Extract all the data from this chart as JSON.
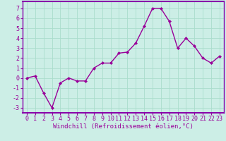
{
  "x": [
    0,
    1,
    2,
    3,
    4,
    5,
    6,
    7,
    8,
    9,
    10,
    11,
    12,
    13,
    14,
    15,
    16,
    17,
    18,
    19,
    20,
    21,
    22,
    23
  ],
  "y": [
    0,
    0.2,
    -1.5,
    -3.0,
    -0.5,
    0.0,
    -0.3,
    -0.3,
    1.0,
    1.5,
    1.5,
    2.5,
    2.6,
    3.5,
    5.2,
    7.0,
    7.0,
    5.7,
    3.0,
    4.0,
    3.2,
    2.0,
    1.5,
    2.2
  ],
  "line_color": "#990099",
  "marker": "D",
  "marker_size": 2,
  "linewidth": 1.0,
  "xlabel": "Windchill (Refroidissement éolien,°C)",
  "xlabel_fontsize": 6.5,
  "ylim": [
    -3.5,
    7.7
  ],
  "yticks": [
    -3,
    -2,
    -1,
    0,
    1,
    2,
    3,
    4,
    5,
    6,
    7
  ],
  "xticks": [
    0,
    1,
    2,
    3,
    4,
    5,
    6,
    7,
    8,
    9,
    10,
    11,
    12,
    13,
    14,
    15,
    16,
    17,
    18,
    19,
    20,
    21,
    22,
    23
  ],
  "grid_color": "#aaddcc",
  "background_color": "#cceee6",
  "tick_fontsize": 6.0,
  "fig_bg": "#cceee6",
  "spine_color": "#8800aa"
}
